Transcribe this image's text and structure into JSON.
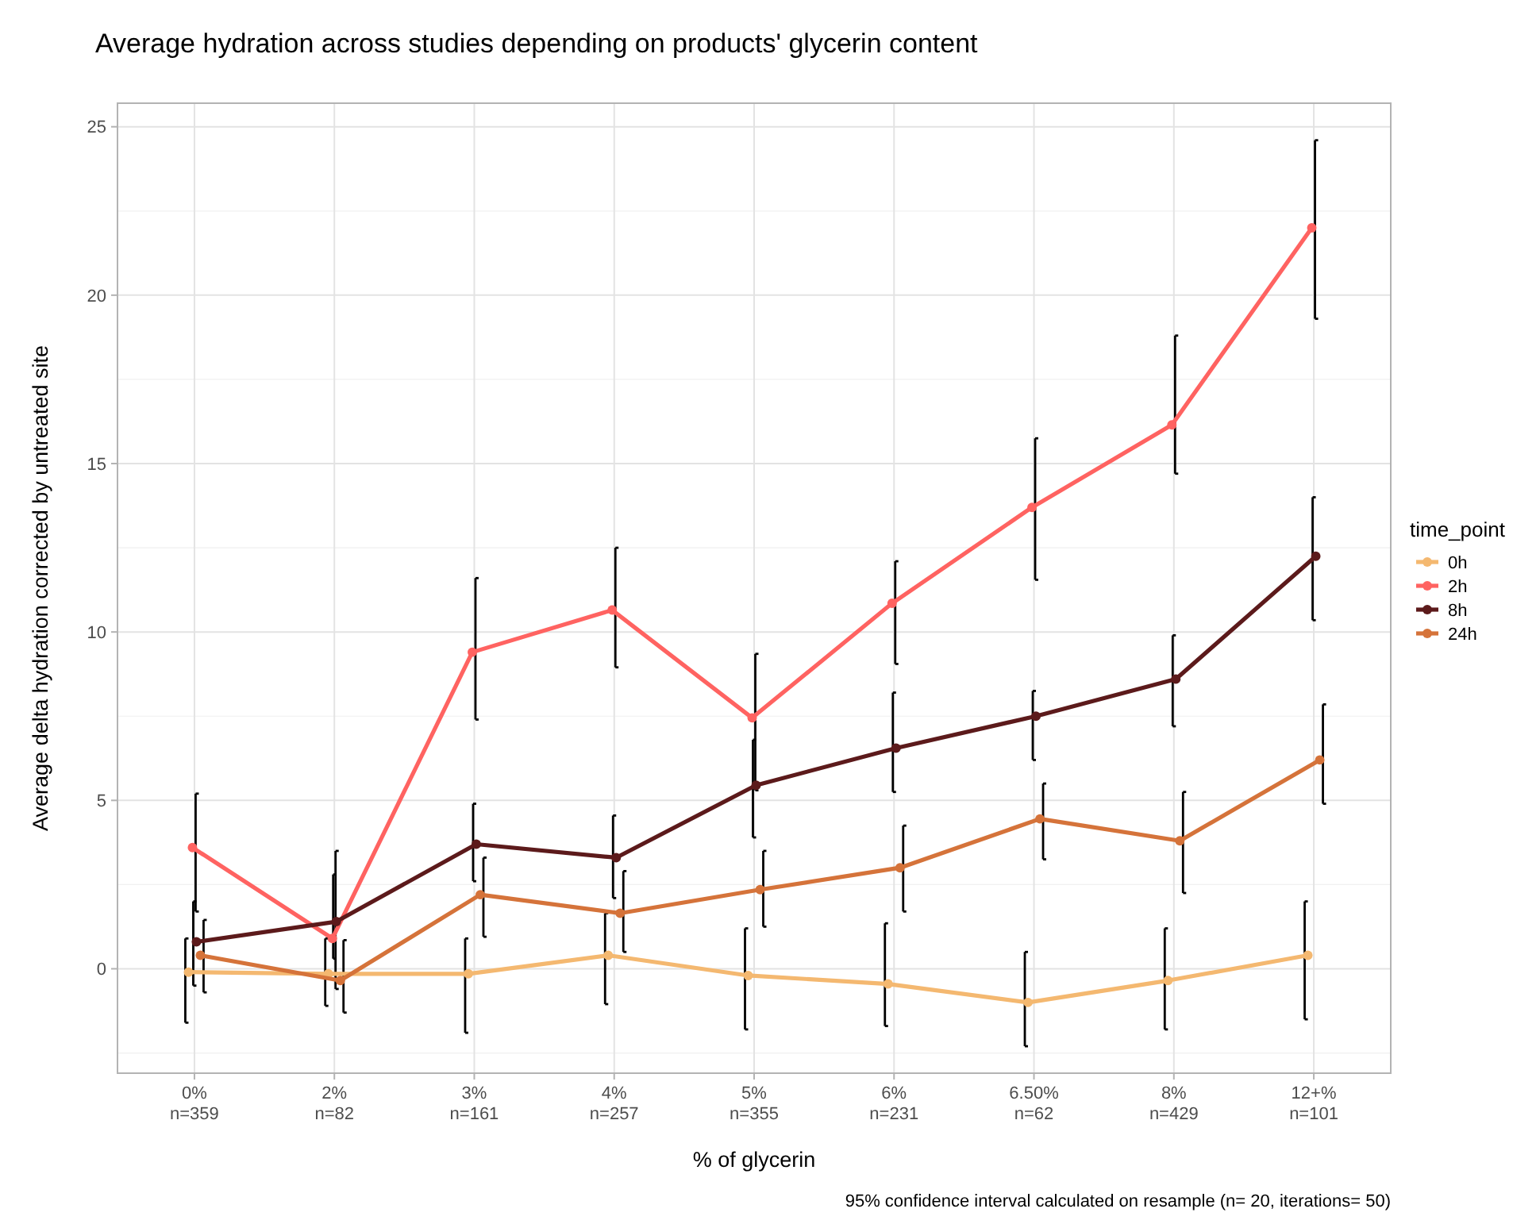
{
  "chart_data": {
    "type": "line",
    "title": "Average hydration across studies depending on products' glycerin content",
    "xlabel": "% of glycerin",
    "ylabel": "Average delta hydration corrected by untreated site",
    "legend_title": "time_point",
    "categories": [
      "0%\nn=359",
      "2%\nn=82",
      "3%\nn=161",
      "4%\nn=257",
      "5%\nn=355",
      "6%\nn=231",
      "6.50%\nn=62",
      "8%\nn=429",
      "12+%\nn=101"
    ],
    "series": [
      {
        "name": "0h",
        "color": "#f4b870",
        "values": [
          -0.1,
          -0.15,
          -0.15,
          0.4,
          -0.2,
          -0.45,
          -1.0,
          -0.35,
          0.4
        ],
        "errors": [
          [
            -1.6,
            0.9
          ],
          [
            -1.1,
            0.9
          ],
          [
            -1.9,
            0.9
          ],
          [
            -1.05,
            1.65
          ],
          [
            -1.8,
            1.2
          ],
          [
            -1.7,
            1.35
          ],
          [
            -2.3,
            0.5
          ],
          [
            -1.8,
            1.2
          ],
          [
            -1.5,
            2.0
          ]
        ]
      },
      {
        "name": "2h",
        "color": "#ff6361",
        "values": [
          3.6,
          0.9,
          9.4,
          10.65,
          7.45,
          10.85,
          13.7,
          16.15,
          22.0
        ],
        "errors": [
          [
            1.7,
            5.2
          ],
          [
            -0.6,
            3.5
          ],
          [
            7.4,
            11.6
          ],
          [
            8.95,
            12.5
          ],
          [
            5.3,
            9.35
          ],
          [
            9.05,
            12.1
          ],
          [
            11.55,
            15.75
          ],
          [
            14.7,
            18.8
          ],
          [
            19.3,
            24.6
          ]
        ]
      },
      {
        "name": "8h",
        "color": "#5c1a1b",
        "values": [
          0.8,
          1.4,
          3.7,
          3.3,
          5.45,
          6.55,
          7.5,
          8.6,
          12.25
        ],
        "errors": [
          [
            -0.5,
            2.0
          ],
          [
            0.3,
            2.8
          ],
          [
            2.6,
            4.9
          ],
          [
            2.1,
            4.55
          ],
          [
            3.9,
            6.8
          ],
          [
            5.25,
            8.2
          ],
          [
            6.2,
            8.25
          ],
          [
            7.2,
            9.9
          ],
          [
            10.35,
            14.0
          ]
        ]
      },
      {
        "name": "24h",
        "color": "#d5733a",
        "values": [
          0.4,
          -0.35,
          2.2,
          1.65,
          2.35,
          3.0,
          4.45,
          3.8,
          6.2
        ],
        "errors": [
          [
            -0.7,
            1.45
          ],
          [
            -1.3,
            0.85
          ],
          [
            0.95,
            3.3
          ],
          [
            0.5,
            2.9
          ],
          [
            1.25,
            3.5
          ],
          [
            1.7,
            4.25
          ],
          [
            3.25,
            5.5
          ],
          [
            2.25,
            5.25
          ],
          [
            4.9,
            7.85
          ]
        ]
      }
    ],
    "ylim": [
      -3.1,
      25.7
    ],
    "yticks": [
      0,
      5,
      10,
      15,
      20,
      25
    ],
    "grid": true,
    "legend": "right",
    "marker": "circle",
    "line_style": "solid",
    "annotations": [
      "95% confidence interval calculated on resample (n= 20, iterations= 50)"
    ]
  }
}
